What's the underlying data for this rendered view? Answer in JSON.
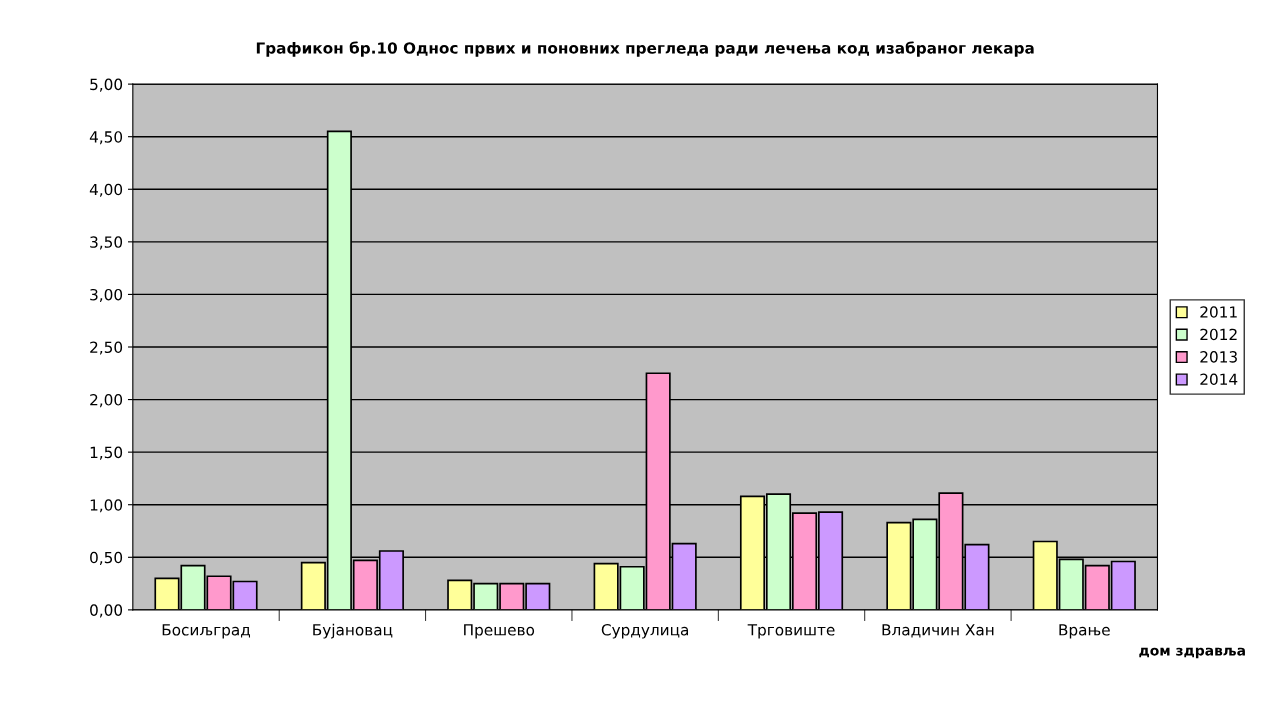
{
  "chart_data": {
    "type": "bar",
    "title": "Графикон бр.10 Однос првих и поновних прегледа ради лечења код изабраног лекара",
    "xlabel": "дом здравља",
    "categories": [
      "Босиљград",
      "Бујановац",
      "Прешево",
      "Сурдулица",
      "Трговиште",
      "Владичин Хан",
      "Врање"
    ],
    "series": [
      {
        "name": "2011",
        "color": "#ffff99",
        "values": [
          0.3,
          0.45,
          0.28,
          0.44,
          1.08,
          0.83,
          0.65
        ]
      },
      {
        "name": "2012",
        "color": "#ccffcc",
        "values": [
          0.42,
          4.55,
          0.25,
          0.41,
          1.1,
          0.86,
          0.48
        ]
      },
      {
        "name": "2013",
        "color": "#ff99cc",
        "values": [
          0.32,
          0.47,
          0.25,
          2.25,
          0.92,
          1.11,
          0.42
        ]
      },
      {
        "name": "2014",
        "color": "#cc99ff",
        "values": [
          0.27,
          0.56,
          0.25,
          0.63,
          0.93,
          0.62,
          0.46
        ]
      }
    ],
    "ylim": [
      0,
      5
    ],
    "yticks": [
      {
        "value": 0,
        "label": "0,00"
      },
      {
        "value": 0.5,
        "label": "0,50"
      },
      {
        "value": 1,
        "label": "1,00"
      },
      {
        "value": 1.5,
        "label": "1,50"
      },
      {
        "value": 2,
        "label": "2,00"
      },
      {
        "value": 2.5,
        "label": "2,50"
      },
      {
        "value": 3,
        "label": "3,00"
      },
      {
        "value": 3.5,
        "label": "3,50"
      },
      {
        "value": 4,
        "label": "4,00"
      },
      {
        "value": 4.5,
        "label": "4,50"
      },
      {
        "value": 5,
        "label": "5,00"
      }
    ],
    "grid": "y",
    "legend": "right"
  }
}
